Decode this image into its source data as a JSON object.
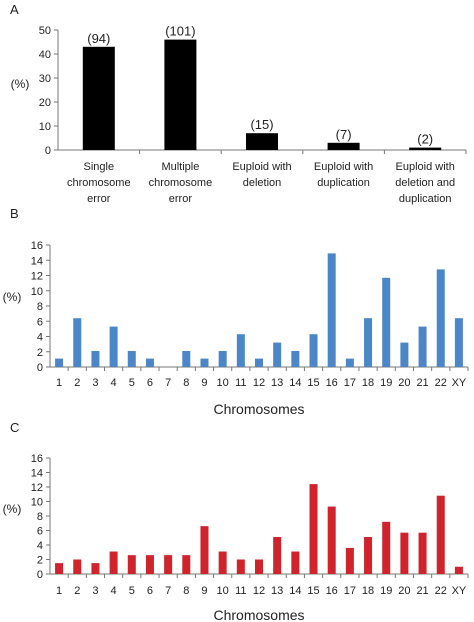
{
  "chart_data": [
    {
      "panel": "A",
      "type": "bar",
      "ylabel": "(%)",
      "ylim": [
        0,
        50
      ],
      "yticks": [
        0,
        10,
        20,
        30,
        40,
        50
      ],
      "grid": false,
      "color": "#000000",
      "categories": [
        [
          "Single",
          "chromosome",
          "error"
        ],
        [
          "Multiple",
          "chromosome",
          "error"
        ],
        [
          "Euploid with",
          "deletion"
        ],
        [
          "Euploid with",
          "duplication"
        ],
        [
          "Euploid with",
          "deletion and",
          "duplication"
        ]
      ],
      "values": [
        43,
        46,
        7,
        3,
        1
      ],
      "data_labels": [
        "(94)",
        "(101)",
        "(15)",
        "(7)",
        "(2)"
      ]
    },
    {
      "panel": "B",
      "type": "bar",
      "ylabel": "(%)",
      "xlabel": "Chromosomes",
      "ylim": [
        0,
        16
      ],
      "yticks": [
        0,
        2,
        4,
        6,
        8,
        10,
        12,
        14,
        16
      ],
      "grid": false,
      "color": "#4a86c8",
      "categories": [
        "1",
        "2",
        "3",
        "4",
        "5",
        "6",
        "7",
        "8",
        "9",
        "10",
        "11",
        "12",
        "13",
        "14",
        "15",
        "16",
        "17",
        "18",
        "19",
        "20",
        "21",
        "22",
        "XY"
      ],
      "values": [
        1.1,
        6.4,
        2.1,
        5.3,
        2.1,
        1.1,
        0,
        2.1,
        1.1,
        2.1,
        4.3,
        1.1,
        3.2,
        2.1,
        4.3,
        14.9,
        1.1,
        6.4,
        11.7,
        3.2,
        5.3,
        12.8,
        6.4
      ]
    },
    {
      "panel": "C",
      "type": "bar",
      "ylabel": "(%)",
      "xlabel": "Chromosomes",
      "ylim": [
        0,
        16
      ],
      "yticks": [
        0,
        2,
        4,
        6,
        8,
        10,
        12,
        14,
        16
      ],
      "grid": false,
      "color": "#d0232b",
      "categories": [
        "1",
        "2",
        "3",
        "4",
        "5",
        "6",
        "7",
        "8",
        "9",
        "10",
        "11",
        "12",
        "13",
        "14",
        "15",
        "16",
        "17",
        "18",
        "19",
        "20",
        "21",
        "22",
        "XY"
      ],
      "values": [
        1.5,
        2.0,
        1.5,
        3.1,
        2.6,
        2.6,
        2.6,
        2.6,
        6.6,
        3.1,
        2.0,
        2.0,
        5.1,
        3.1,
        12.4,
        9.3,
        3.6,
        5.1,
        7.2,
        5.7,
        5.7,
        10.8,
        1.0
      ]
    }
  ]
}
